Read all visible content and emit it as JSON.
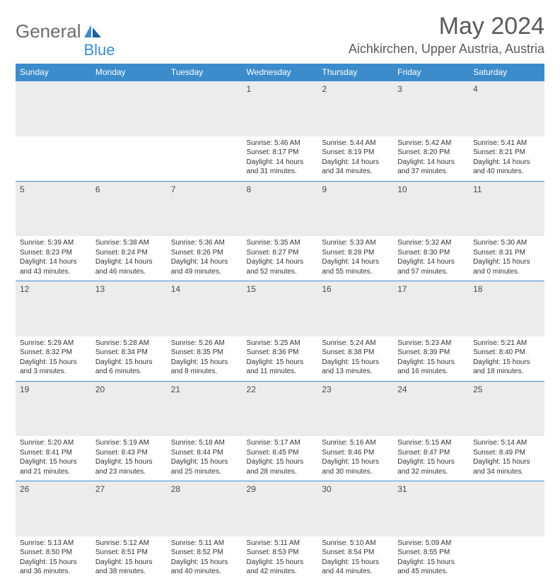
{
  "brand": {
    "part1": "General",
    "part2": "Blue"
  },
  "title": "May 2024",
  "location": "Aichkirchen, Upper Austria, Austria",
  "header_bg": "#3c8ccc",
  "dayhead_bg": "#ececec",
  "border_color": "#3c8ccc",
  "weekdays": [
    "Sunday",
    "Monday",
    "Tuesday",
    "Wednesday",
    "Thursday",
    "Friday",
    "Saturday"
  ],
  "weeks": [
    [
      null,
      null,
      null,
      {
        "n": "1",
        "sr": "5:46 AM",
        "ss": "8:17 PM",
        "dl": "14 hours and 31 minutes."
      },
      {
        "n": "2",
        "sr": "5:44 AM",
        "ss": "8:19 PM",
        "dl": "14 hours and 34 minutes."
      },
      {
        "n": "3",
        "sr": "5:42 AM",
        "ss": "8:20 PM",
        "dl": "14 hours and 37 minutes."
      },
      {
        "n": "4",
        "sr": "5:41 AM",
        "ss": "8:21 PM",
        "dl": "14 hours and 40 minutes."
      }
    ],
    [
      {
        "n": "5",
        "sr": "5:39 AM",
        "ss": "8:23 PM",
        "dl": "14 hours and 43 minutes."
      },
      {
        "n": "6",
        "sr": "5:38 AM",
        "ss": "8:24 PM",
        "dl": "14 hours and 46 minutes."
      },
      {
        "n": "7",
        "sr": "5:36 AM",
        "ss": "8:26 PM",
        "dl": "14 hours and 49 minutes."
      },
      {
        "n": "8",
        "sr": "5:35 AM",
        "ss": "8:27 PM",
        "dl": "14 hours and 52 minutes."
      },
      {
        "n": "9",
        "sr": "5:33 AM",
        "ss": "8:28 PM",
        "dl": "14 hours and 55 minutes."
      },
      {
        "n": "10",
        "sr": "5:32 AM",
        "ss": "8:30 PM",
        "dl": "14 hours and 57 minutes."
      },
      {
        "n": "11",
        "sr": "5:30 AM",
        "ss": "8:31 PM",
        "dl": "15 hours and 0 minutes."
      }
    ],
    [
      {
        "n": "12",
        "sr": "5:29 AM",
        "ss": "8:32 PM",
        "dl": "15 hours and 3 minutes."
      },
      {
        "n": "13",
        "sr": "5:28 AM",
        "ss": "8:34 PM",
        "dl": "15 hours and 6 minutes."
      },
      {
        "n": "14",
        "sr": "5:26 AM",
        "ss": "8:35 PM",
        "dl": "15 hours and 8 minutes."
      },
      {
        "n": "15",
        "sr": "5:25 AM",
        "ss": "8:36 PM",
        "dl": "15 hours and 11 minutes."
      },
      {
        "n": "16",
        "sr": "5:24 AM",
        "ss": "8:38 PM",
        "dl": "15 hours and 13 minutes."
      },
      {
        "n": "17",
        "sr": "5:23 AM",
        "ss": "8:39 PM",
        "dl": "15 hours and 16 minutes."
      },
      {
        "n": "18",
        "sr": "5:21 AM",
        "ss": "8:40 PM",
        "dl": "15 hours and 18 minutes."
      }
    ],
    [
      {
        "n": "19",
        "sr": "5:20 AM",
        "ss": "8:41 PM",
        "dl": "15 hours and 21 minutes."
      },
      {
        "n": "20",
        "sr": "5:19 AM",
        "ss": "8:43 PM",
        "dl": "15 hours and 23 minutes."
      },
      {
        "n": "21",
        "sr": "5:18 AM",
        "ss": "8:44 PM",
        "dl": "15 hours and 25 minutes."
      },
      {
        "n": "22",
        "sr": "5:17 AM",
        "ss": "8:45 PM",
        "dl": "15 hours and 28 minutes."
      },
      {
        "n": "23",
        "sr": "5:16 AM",
        "ss": "8:46 PM",
        "dl": "15 hours and 30 minutes."
      },
      {
        "n": "24",
        "sr": "5:15 AM",
        "ss": "8:47 PM",
        "dl": "15 hours and 32 minutes."
      },
      {
        "n": "25",
        "sr": "5:14 AM",
        "ss": "8:49 PM",
        "dl": "15 hours and 34 minutes."
      }
    ],
    [
      {
        "n": "26",
        "sr": "5:13 AM",
        "ss": "8:50 PM",
        "dl": "15 hours and 36 minutes."
      },
      {
        "n": "27",
        "sr": "5:12 AM",
        "ss": "8:51 PM",
        "dl": "15 hours and 38 minutes."
      },
      {
        "n": "28",
        "sr": "5:11 AM",
        "ss": "8:52 PM",
        "dl": "15 hours and 40 minutes."
      },
      {
        "n": "29",
        "sr": "5:11 AM",
        "ss": "8:53 PM",
        "dl": "15 hours and 42 minutes."
      },
      {
        "n": "30",
        "sr": "5:10 AM",
        "ss": "8:54 PM",
        "dl": "15 hours and 44 minutes."
      },
      {
        "n": "31",
        "sr": "5:09 AM",
        "ss": "8:55 PM",
        "dl": "15 hours and 45 minutes."
      },
      null
    ]
  ],
  "labels": {
    "sunrise": "Sunrise:",
    "sunset": "Sunset:",
    "daylight": "Daylight:"
  }
}
